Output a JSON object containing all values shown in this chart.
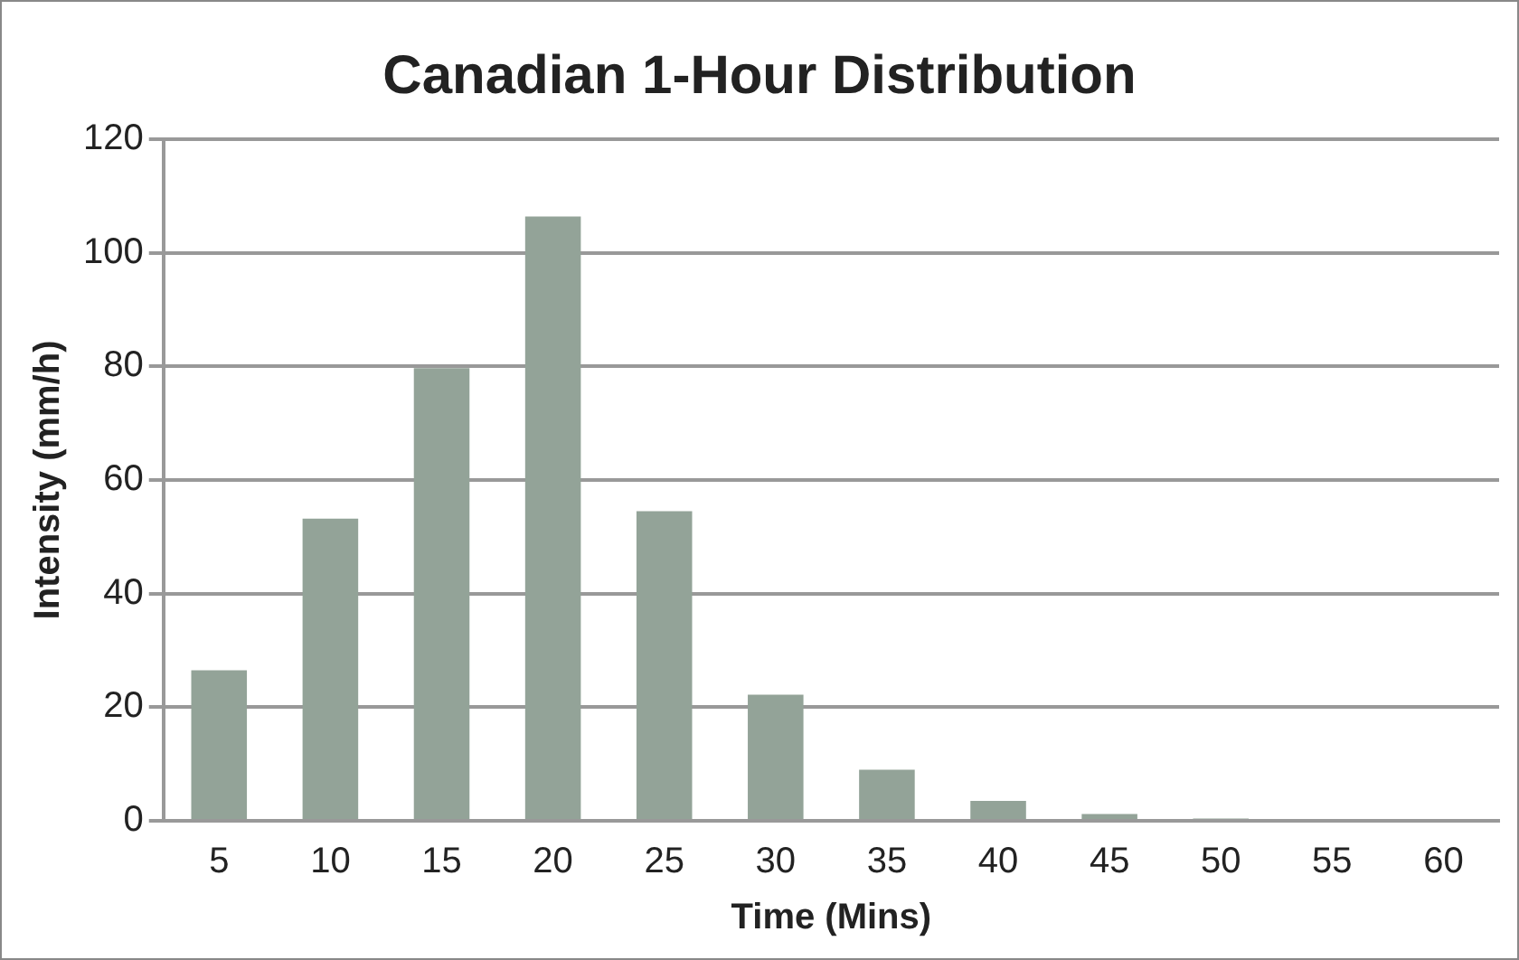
{
  "chart_data": {
    "type": "bar",
    "title": "Canadian 1-Hour Distribution",
    "xlabel": "Time (Mins)",
    "ylabel": "Intensity (mm/h)",
    "categories": [
      "5",
      "10",
      "15",
      "20",
      "25",
      "30",
      "35",
      "40",
      "45",
      "50",
      "55",
      "60"
    ],
    "values": [
      26.5,
      53.2,
      79.7,
      106.4,
      54.5,
      22.2,
      9.0,
      3.5,
      1.2,
      0.4,
      0,
      0
    ],
    "color": "#93a398",
    "ylim": [
      0,
      120
    ],
    "yticks": [
      0,
      20,
      40,
      60,
      80,
      100,
      120
    ],
    "grid": "y",
    "legend": false
  }
}
